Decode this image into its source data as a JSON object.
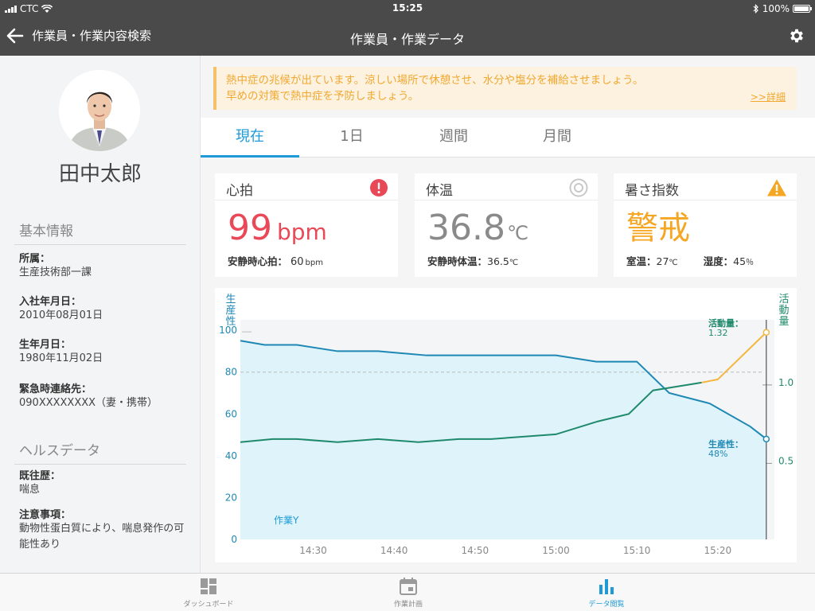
{
  "status_bar": {
    "carrier": "CTC",
    "time": "15:25",
    "battery": "100%"
  },
  "nav": {
    "back_label": "作業員・作業内容検索",
    "title": "作業員・作業データ"
  },
  "profile": {
    "name": "田中太郎",
    "basic_info_title": "基本情報",
    "department_label": "所属：",
    "department": "生産技術部一課",
    "join_label": "入社年月日：",
    "join_date": "2010年08月01日",
    "birth_label": "生年月日：",
    "birth_date": "1980年11月02日",
    "emergency_label": "緊急時連絡先：",
    "emergency": "090XXXXXXXX（妻・携帯）",
    "health_title": "ヘルスデータ",
    "history_label": "既往歴：",
    "history": "喘息",
    "notes_label": "注意事項：",
    "notes": "動物性蛋白質により、喘息発作の可能性あり"
  },
  "alert": {
    "line1": "熱中症の兆候が出ています。涼しい場所で休憩させ、水分や塩分を補給させましょう。",
    "line2": "早めの対策で熱中症を予防しましょう。",
    "detail": ">>詳細"
  },
  "tabs": [
    "現在",
    "1日",
    "週間",
    "月間"
  ],
  "active_tab": "現在",
  "cards": {
    "heart": {
      "title": "心拍",
      "value": "99",
      "unit": "bpm",
      "sub_label": "安静時心拍：",
      "sub_value": "60",
      "sub_unit": "bpm",
      "color": "#e94856",
      "icon": "alert-icon"
    },
    "temp": {
      "title": "体温",
      "value": "36.8",
      "unit": "℃",
      "sub_label": "安静時体温：",
      "sub_value": "36.5",
      "sub_unit": "℃",
      "color": "#8a8a8a",
      "icon": "target-icon"
    },
    "heat": {
      "title": "暑さ指数",
      "value": "警戒",
      "room_label": "室温：",
      "room_value": "27",
      "room_unit": "℃",
      "humidity_label": "湿度：",
      "humidity_value": "45",
      "humidity_unit": "％",
      "color": "#f5a623",
      "icon": "warning-icon"
    }
  },
  "tabbar": {
    "items": [
      "ダッシュボード",
      "作業計画",
      "データ閲覧"
    ],
    "active": "データ閲覧"
  },
  "colors": {
    "accent": "#1e9bd7",
    "productivity": "#1e88b4",
    "activity": "#1f8a6b",
    "activity_highlight": "#f5b642",
    "alert": "#f0a830"
  },
  "chart_data": {
    "type": "line",
    "left_axis_title": "生産性",
    "right_axis_title": "活動量",
    "left_ticks": [
      0,
      20,
      40,
      60,
      80,
      100
    ],
    "left_ylim": [
      0,
      105
    ],
    "right_ticks": [
      0.5,
      1.0
    ],
    "right_ylim": [
      0,
      1.4
    ],
    "x_ticks": [
      "14:30",
      "14:40",
      "14:50",
      "15:00",
      "15:10",
      "15:20"
    ],
    "xlim": [
      "14:21",
      "15:27"
    ],
    "reference_line": 80,
    "task_label": "作業Y",
    "series": [
      {
        "name": "生産性",
        "axis": "left",
        "color": "#1e88b4",
        "x": [
          "14:21",
          "14:24",
          "14:28",
          "14:33",
          "14:38",
          "14:44",
          "14:49",
          "14:55",
          "15:00",
          "15:05",
          "15:10",
          "15:14",
          "15:19",
          "15:24",
          "15:26"
        ],
        "values": [
          95,
          93,
          93,
          90,
          90,
          88,
          88,
          88,
          88,
          85,
          85,
          70,
          65,
          54,
          48
        ]
      },
      {
        "name": "活動量",
        "axis": "right",
        "color": "#1f8a6b",
        "highlight_color": "#f5b642",
        "highlight_from_index": 9,
        "x": [
          "14:21",
          "14:25",
          "14:28",
          "14:33",
          "14:38",
          "14:43",
          "14:48",
          "14:52",
          "15:00",
          "15:05",
          "15:09",
          "15:12",
          "15:18",
          "15:20",
          "15:26"
        ],
        "values": [
          0.62,
          0.64,
          0.64,
          0.62,
          0.64,
          0.62,
          0.64,
          0.64,
          0.67,
          0.75,
          0.8,
          0.95,
          1.0,
          1.02,
          1.32
        ]
      }
    ],
    "annotations": [
      {
        "label": "活動量：",
        "value": "1.32"
      },
      {
        "label": "生産性：",
        "value": "48%"
      }
    ]
  }
}
